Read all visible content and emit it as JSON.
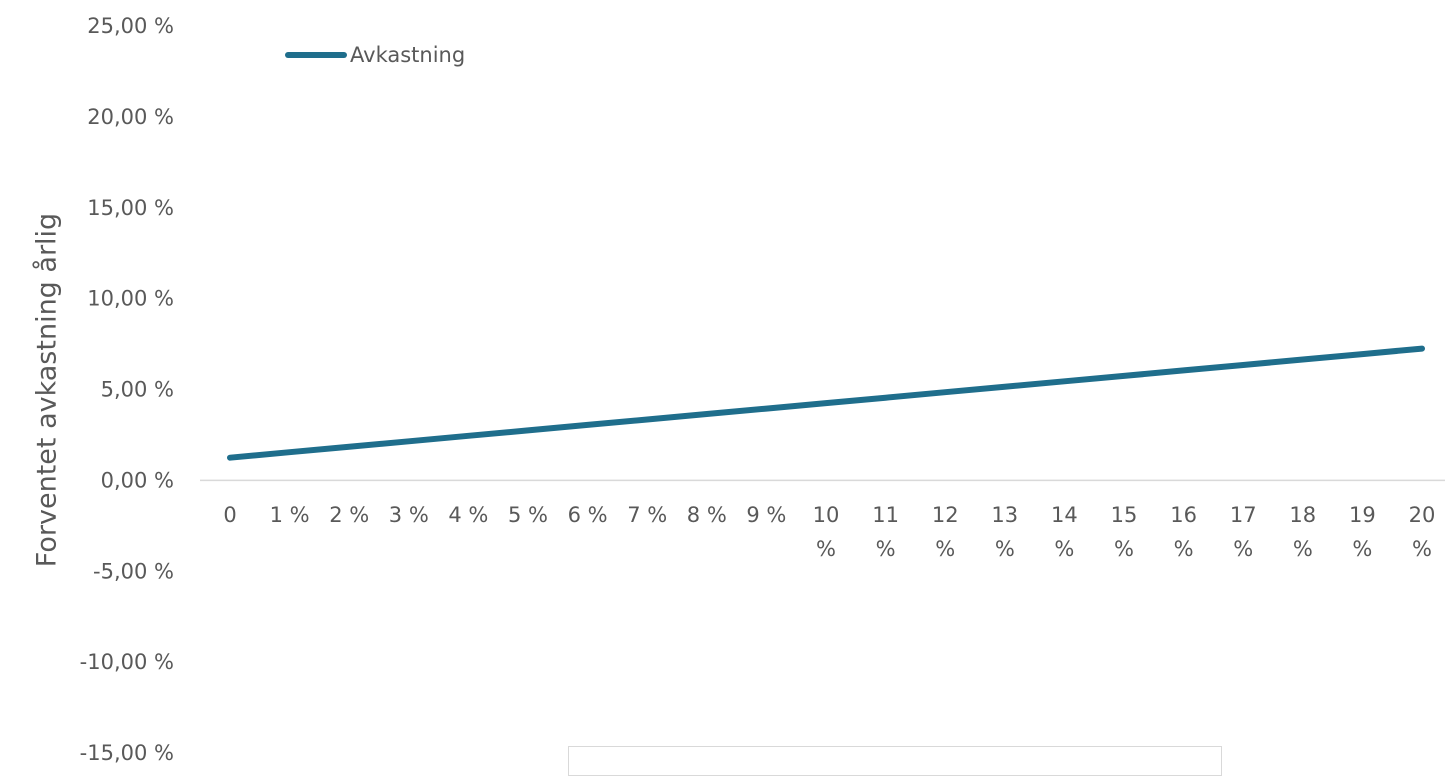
{
  "chart_data": {
    "type": "line",
    "title": "",
    "ylabel": "Forventet avkastning årlig",
    "xlabel": "",
    "ylim": [
      -15,
      25
    ],
    "y_ticks": [
      "25,00 %",
      "20,00 %",
      "15,00 %",
      "10,00 %",
      "5,00 %",
      "0,00 %",
      "-5,00 %",
      "-10,00 %",
      "-15,00 %"
    ],
    "y_tick_values": [
      25,
      20,
      15,
      10,
      5,
      0,
      -5,
      -10,
      -15
    ],
    "categories": [
      "0",
      "1 %",
      "2 %",
      "3 %",
      "4 %",
      "5 %",
      "6 %",
      "7 %",
      "8 %",
      "9 %",
      "10 %",
      "11 %",
      "12 %",
      "13 %",
      "14 %",
      "15 %",
      "16 %",
      "17 %",
      "18 %",
      "19 %",
      "20 %"
    ],
    "legend_placement": "top-left",
    "grid": false,
    "series": [
      {
        "name": "Avkastning",
        "color": "#1f6e8c",
        "values": [
          1.25,
          1.55,
          1.85,
          2.15,
          2.45,
          2.75,
          3.05,
          3.35,
          3.65,
          3.95,
          4.25,
          4.55,
          4.85,
          5.15,
          5.45,
          5.75,
          6.05,
          6.35,
          6.65,
          6.95,
          7.25
        ]
      }
    ],
    "colors": {
      "axis": "#d9d9d9",
      "text": "#595959"
    }
  }
}
